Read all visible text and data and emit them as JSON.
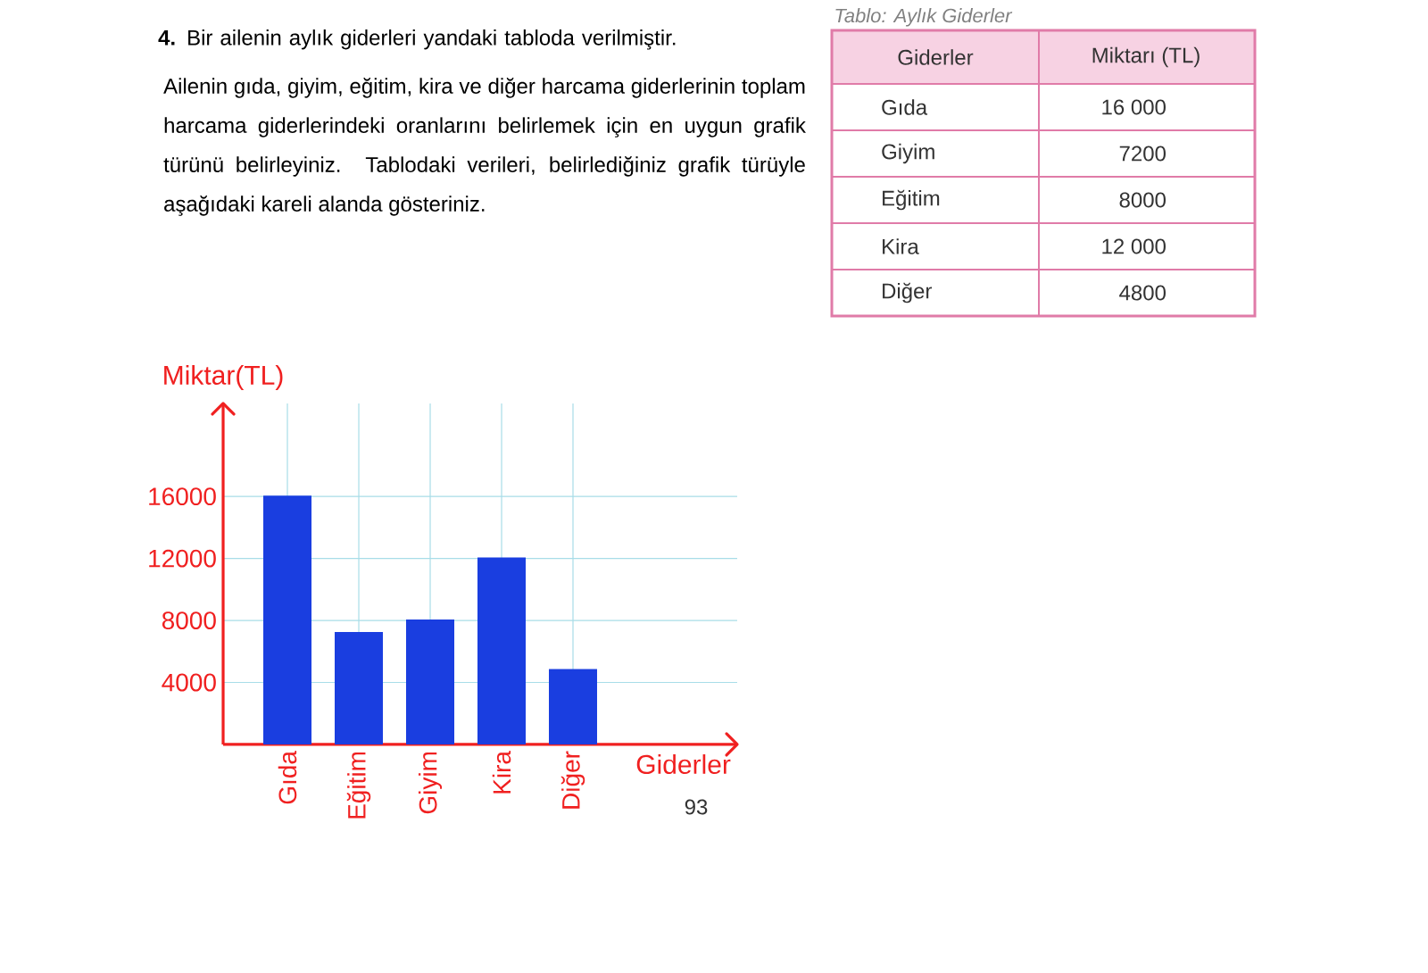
{
  "chart_data": {
    "type": "bar",
    "title": "**4.** Bir ailenin aylık giderleri yandaki tabloda verilmiştir.",
    "subtitle": "Ailenin gıda, giyim, eğitim, kira ve diğer harcama giderlerinin toplam harcama giderlerindeki oranlarını belirlemek için en uygun grafik türünü belirleyiniz. Tablodaki verileri, belirlediğiniz grafik türüyle aşağıdaki kareli alanda gösteriniz.",
    "xlabel": "Giderler",
    "ylabel": "Miktar(TL)",
    "categories": [
      "Gıda",
      "Eğitim",
      "Giyim",
      "Kira",
      "Diğer"
    ],
    "values": [
      16000,
      7200,
      8000,
      12000,
      4800
    ],
    "color": "#1a3ee0",
    "ylim": [
      0,
      22000
    ],
    "yticks": [
      4000,
      8000,
      12000,
      16000
    ],
    "grid": true,
    "annotations": [
      "*Tablo:* Aylık Giderler",
      "Giderler",
      "Miktarı (TL)",
      "Gıda",
      "16 000",
      "Giyim",
      "7200",
      "Eğitim",
      "8000",
      "Kira",
      "12 000",
      "Diğer",
      "4800",
      "93"
    ]
  }
}
